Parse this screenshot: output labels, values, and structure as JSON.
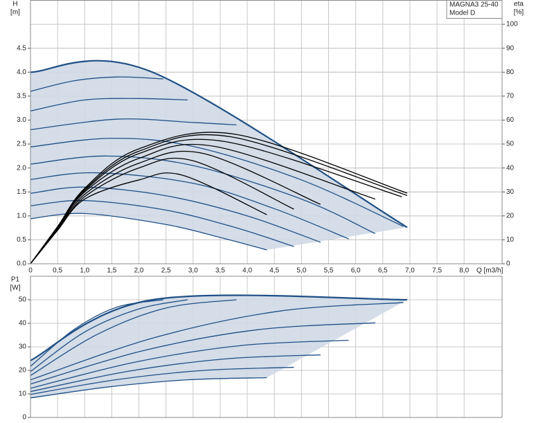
{
  "chart_data": [
    {
      "type": "line",
      "y_label": [
        "H",
        "[m]"
      ],
      "y2_label": [
        "eta",
        "[%]"
      ],
      "x_label": "Q [m3/h]",
      "annotations": [
        "MAGNA3 25-40",
        "Model D"
      ],
      "xlim": [
        0,
        8.7
      ],
      "xticks": [
        0,
        {
          "value": 0.5,
          "label": "0,5"
        },
        {
          "value": 1,
          "label": "1,0"
        },
        {
          "value": 1.5,
          "label": "1,5"
        },
        {
          "value": 2,
          "label": "2,0"
        },
        {
          "value": 2.5,
          "label": "2,5"
        },
        {
          "value": 3,
          "label": "3,0"
        },
        {
          "value": 3.5,
          "label": "3,5"
        },
        {
          "value": 4,
          "label": "4,0"
        },
        {
          "value": 4.5,
          "label": "4,5"
        },
        {
          "value": 5,
          "label": "5,0"
        },
        {
          "value": 5.5,
          "label": "5,5"
        },
        {
          "value": 6,
          "label": "6,0"
        },
        {
          "value": 6.5,
          "label": "6,5"
        },
        {
          "value": 7,
          "label": "7,0"
        },
        {
          "value": 7.5,
          "label": "7,5"
        },
        {
          "value": 8,
          "label": "8,0"
        }
      ],
      "ylim": [
        0,
        5.5
      ],
      "yticks": [
        {
          "value": 0,
          "label": "0.0"
        },
        0.5,
        {
          "value": 1,
          "label": "1.0"
        },
        1.5,
        {
          "value": 2,
          "label": "2.0"
        },
        2.5,
        {
          "value": 3,
          "label": "3.0"
        },
        3.5,
        {
          "value": 4,
          "label": "4.0"
        },
        4.5
      ],
      "y2lim": [
        0,
        110
      ],
      "y2ticks": [
        0,
        10,
        20,
        30,
        40,
        50,
        60,
        70,
        80,
        90,
        100
      ],
      "grid": true,
      "area_color": "#cfd9e6",
      "series": [
        {
          "color": "#1f4f85",
          "x": [
            0,
            2.25,
            6.95
          ],
          "values": [
            4.0,
            4.0,
            0.76
          ]
        },
        {
          "color": "#1f4f85",
          "x": [
            0,
            0.8,
            1.6,
            2.45
          ],
          "values": [
            3.6,
            3.82,
            3.9,
            3.86
          ]
        },
        {
          "color": "#1f4f85",
          "x": [
            0,
            1,
            2,
            2.9
          ],
          "values": [
            3.19,
            3.42,
            3.45,
            3.42
          ]
        },
        {
          "color": "#1f4f85",
          "x": [
            0,
            1.6,
            3,
            3.8
          ],
          "values": [
            2.8,
            3.02,
            2.95,
            2.9
          ]
        },
        {
          "color": "#1f4f85",
          "x": [
            0,
            1.5,
            3,
            5,
            6.88
          ],
          "values": [
            2.44,
            2.62,
            2.45,
            1.75,
            0.78
          ]
        },
        {
          "color": "#1f4f85",
          "x": [
            0,
            1.4,
            3,
            5,
            6.36
          ],
          "values": [
            2.08,
            2.25,
            2.05,
            1.35,
            0.63
          ]
        },
        {
          "color": "#1f4f85",
          "x": [
            0,
            1.2,
            3,
            4.5,
            5.87
          ],
          "values": [
            1.76,
            1.9,
            1.68,
            1.15,
            0.52
          ]
        },
        {
          "color": "#1f4f85",
          "x": [
            0,
            1,
            2.5,
            4,
            5.35
          ],
          "values": [
            1.47,
            1.6,
            1.42,
            1.0,
            0.45
          ]
        },
        {
          "color": "#1f4f85",
          "x": [
            0,
            1,
            2.5,
            3.8,
            4.86
          ],
          "values": [
            1.21,
            1.32,
            1.12,
            0.75,
            0.36
          ]
        },
        {
          "color": "#1f4f85",
          "x": [
            0,
            1,
            2.5,
            3.5,
            4.36
          ],
          "values": [
            0.94,
            1.05,
            0.82,
            0.55,
            0.29
          ]
        },
        {
          "color": "#000000",
          "axis": "y2",
          "x": [
            0,
            0.5,
            1,
            2,
            2.8,
            4.36
          ],
          "values": [
            0,
            14,
            27,
            35,
            37,
            20.5
          ]
        },
        {
          "color": "#000000",
          "axis": "y2",
          "x": [
            0,
            0.5,
            1,
            2,
            3.0,
            4.86
          ],
          "values": [
            0,
            14,
            28,
            40,
            43,
            22.8
          ]
        },
        {
          "color": "#000000",
          "axis": "y2",
          "x": [
            0,
            0.5,
            1,
            2,
            3.2,
            5.35
          ],
          "values": [
            0,
            14.5,
            29,
            42,
            46,
            24.8
          ]
        },
        {
          "color": "#000000",
          "axis": "y2",
          "x": [
            0,
            0.5,
            1,
            2,
            3.4,
            6.36
          ],
          "values": [
            0,
            15,
            30,
            44,
            49,
            27
          ]
        },
        {
          "color": "#000000",
          "axis": "y2",
          "x": [
            0,
            0.5,
            1,
            2,
            3.6,
            6.85
          ],
          "values": [
            0,
            15,
            30.5,
            46,
            51,
            28
          ]
        },
        {
          "color": "#000000",
          "axis": "y2",
          "x": [
            0,
            0.5,
            1,
            2,
            3.7,
            6.95
          ],
          "values": [
            0,
            15.5,
            31,
            47,
            53,
            28.5
          ]
        },
        {
          "color": "#000000",
          "axis": "y2",
          "x": [
            0,
            0.5,
            1,
            2,
            3.8,
            6.95
          ],
          "values": [
            0,
            15.5,
            31.5,
            48,
            54,
            29.5
          ]
        }
      ]
    },
    {
      "type": "line",
      "y_label": [
        "P1",
        "[W]"
      ],
      "xlim": [
        0,
        8.7
      ],
      "ylim": [
        0,
        60
      ],
      "yticks": [
        0,
        10,
        20,
        30,
        40,
        50
      ],
      "grid": true,
      "area_color": "#cfd9e6",
      "series": [
        {
          "color": "#1f4f85",
          "x": [
            0,
            2.25,
            6.95
          ],
          "values": [
            24.2,
            50,
            50
          ]
        },
        {
          "color": "#1f4f85",
          "x": [
            0,
            0.8,
            1.6,
            2.45
          ],
          "values": [
            21.7,
            37.3,
            46.9,
            50
          ]
        },
        {
          "color": "#1f4f85",
          "x": [
            0,
            1,
            2,
            2.9
          ],
          "values": [
            19.5,
            36.3,
            46.1,
            50
          ]
        },
        {
          "color": "#1f4f85",
          "x": [
            0,
            1.25,
            2.5,
            3.8
          ],
          "values": [
            17.8,
            35.5,
            46.5,
            50
          ]
        },
        {
          "color": "#1f4f85",
          "x": [
            0,
            2.3,
            4.6,
            6.88
          ],
          "values": [
            16,
            34,
            45.2,
            48.8
          ]
        },
        {
          "color": "#1f4f85",
          "x": [
            0,
            2.1,
            4.2,
            6.36
          ],
          "values": [
            14.2,
            28.5,
            37.3,
            40.2
          ]
        },
        {
          "color": "#1f4f85",
          "x": [
            0,
            1.95,
            3.9,
            5.87
          ],
          "values": [
            12.4,
            23.6,
            30.6,
            32.8
          ]
        },
        {
          "color": "#1f4f85",
          "x": [
            0,
            1.8,
            3.6,
            5.35
          ],
          "values": [
            11,
            19.6,
            24.9,
            26.6
          ]
        },
        {
          "color": "#1f4f85",
          "x": [
            0,
            1.6,
            3.2,
            4.86
          ],
          "values": [
            9.8,
            16.1,
            20.0,
            21.3
          ]
        },
        {
          "color": "#1f4f85",
          "x": [
            0,
            1.45,
            2.9,
            4.36
          ],
          "values": [
            8.3,
            13.0,
            16.0,
            16.9
          ]
        }
      ]
    }
  ]
}
